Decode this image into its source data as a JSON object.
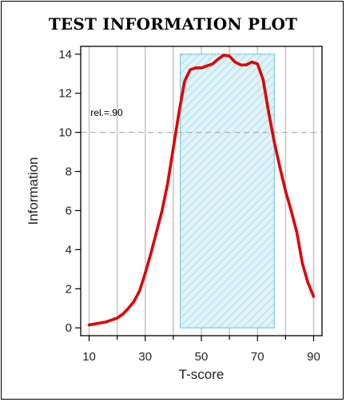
{
  "chart_data": {
    "type": "line",
    "title": "TEST INFORMATION PLOT",
    "xlabel": "T-score",
    "ylabel": "Information",
    "xlim": [
      7,
      93
    ],
    "ylim": [
      -0.4,
      14.4
    ],
    "x_ticks": [
      10,
      30,
      50,
      70,
      90
    ],
    "x_ticks_minor": [
      20,
      40,
      60,
      80
    ],
    "y_ticks": [
      0,
      2,
      4,
      6,
      8,
      10,
      12,
      14
    ],
    "vertical_gridlines": [
      10,
      20,
      30,
      40,
      50,
      60,
      70,
      80,
      90
    ],
    "reference_line": {
      "y": 10,
      "label": "rel.=.90",
      "style": "dashed",
      "color": "#b0b0b0"
    },
    "shaded_region": {
      "x": [
        42.5,
        76
      ],
      "y": [
        0,
        14
      ],
      "fill": "#d8f0f6",
      "stroke": "#7ec8dc",
      "pattern": "hatched"
    },
    "series": [
      {
        "color": "#e00000",
        "points": [
          [
            10,
            0.15
          ],
          [
            12,
            0.2
          ],
          [
            14,
            0.25
          ],
          [
            16,
            0.3
          ],
          [
            18,
            0.4
          ],
          [
            20,
            0.5
          ],
          [
            22,
            0.7
          ],
          [
            24,
            1.0
          ],
          [
            26,
            1.35
          ],
          [
            28,
            1.9
          ],
          [
            30,
            2.8
          ],
          [
            32,
            3.8
          ],
          [
            34,
            4.9
          ],
          [
            36,
            6.0
          ],
          [
            38,
            7.4
          ],
          [
            40,
            9.2
          ],
          [
            42,
            11.0
          ],
          [
            44,
            12.6
          ],
          [
            46,
            13.2
          ],
          [
            48,
            13.3
          ],
          [
            50,
            13.3
          ],
          [
            52,
            13.4
          ],
          [
            54,
            13.5
          ],
          [
            56,
            13.75
          ],
          [
            58,
            13.95
          ],
          [
            60,
            13.9
          ],
          [
            62,
            13.6
          ],
          [
            64,
            13.45
          ],
          [
            66,
            13.45
          ],
          [
            68,
            13.6
          ],
          [
            70,
            13.5
          ],
          [
            72,
            12.7
          ],
          [
            74,
            11.0
          ],
          [
            76,
            9.5
          ],
          [
            78,
            8.2
          ],
          [
            80,
            7.0
          ],
          [
            82,
            6.0
          ],
          [
            84,
            4.9
          ],
          [
            86,
            3.3
          ],
          [
            88,
            2.3
          ],
          [
            90,
            1.6
          ]
        ]
      }
    ],
    "grid": true
  }
}
